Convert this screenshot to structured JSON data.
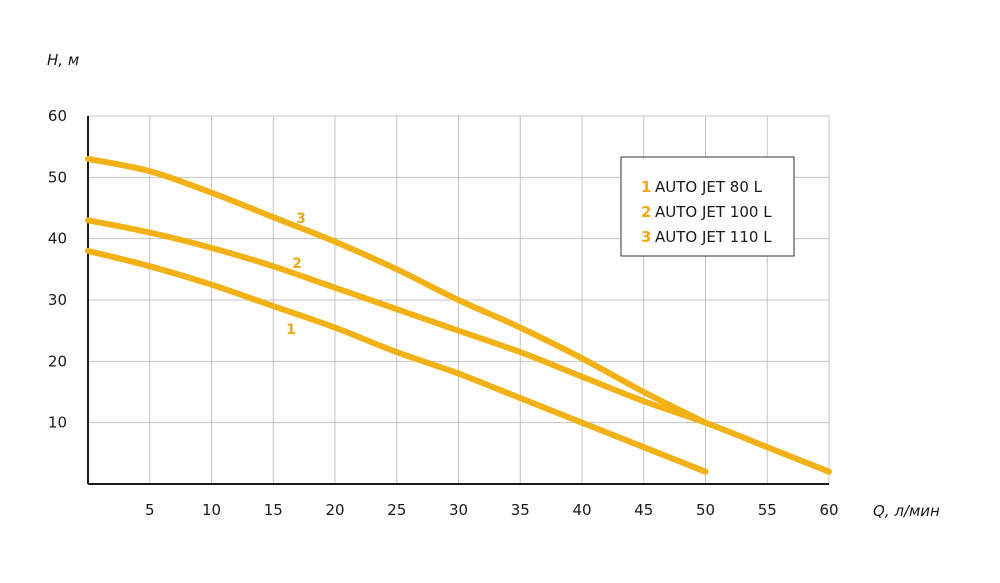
{
  "chart_data": {
    "type": "line",
    "xlabel": "Q, л/мин",
    "ylabel": "H, м",
    "x_ticks": [
      "5",
      "10",
      "15",
      "20",
      "25",
      "30",
      "35",
      "40",
      "45",
      "50",
      "55",
      "60"
    ],
    "y_ticks": [
      "10",
      "20",
      "30",
      "40",
      "50",
      "60"
    ],
    "xlim": [
      0,
      60
    ],
    "ylim": [
      0,
      60
    ],
    "grid": true,
    "legend_position": "top-right",
    "series": [
      {
        "id": "1",
        "name": "AUTO JET 80 L",
        "curve_label": "1",
        "x": [
          0,
          5,
          10,
          15,
          20,
          25,
          30,
          35,
          40,
          45,
          50
        ],
        "y": [
          38,
          35.5,
          32.5,
          29,
          25.5,
          21.5,
          18,
          14,
          10,
          6,
          2
        ]
      },
      {
        "id": "2",
        "name": "AUTO JET 100 L",
        "curve_label": "2",
        "x": [
          0,
          5,
          10,
          15,
          20,
          25,
          30,
          35,
          40,
          45,
          50,
          55,
          60
        ],
        "y": [
          43,
          41,
          38.5,
          35.5,
          32,
          28.5,
          25,
          21.5,
          17.5,
          13.5,
          10,
          6,
          2
        ]
      },
      {
        "id": "3",
        "name": "AUTO JET 110 L",
        "curve_label": "3",
        "x": [
          0,
          5,
          10,
          15,
          20,
          25,
          30,
          35,
          40,
          45,
          50
        ],
        "y": [
          53,
          51,
          47.5,
          43.5,
          39.5,
          35,
          30,
          25.5,
          20.5,
          15,
          10
        ]
      }
    ]
  },
  "colors": {
    "curve": "#f2b215",
    "label": "#f0a818",
    "grid": "#c4c4c4",
    "axis": "#1a1a1a"
  }
}
